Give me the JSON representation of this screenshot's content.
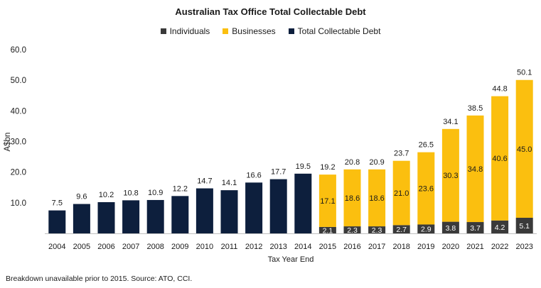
{
  "colors": {
    "individuals": "#3a3a3a",
    "businesses": "#fbbf0f",
    "total": "#0d1f3d"
  },
  "chart_data": {
    "type": "bar",
    "title": "Australian Tax Office Total Collectable Debt",
    "xlabel": "Tax Year End",
    "ylabel": "A$bn",
    "ylim": [
      0,
      60
    ],
    "yticks": [
      "10.0",
      "20.0",
      "30.0",
      "40.0",
      "50.0",
      "60.0"
    ],
    "legend": [
      "Individuals",
      "Businesses",
      "Total Collectable Debt"
    ],
    "legend_position": "top",
    "categories": [
      "2004",
      "2005",
      "2006",
      "2007",
      "2008",
      "2009",
      "2010",
      "2011",
      "2012",
      "2013",
      "2014",
      "2015",
      "2016",
      "2017",
      "2018",
      "2019",
      "2020",
      "2021",
      "2022",
      "2023"
    ],
    "total_only": [
      7.5,
      9.6,
      10.2,
      10.8,
      10.9,
      12.2,
      14.7,
      14.1,
      16.6,
      17.7,
      19.5
    ],
    "stacked": {
      "years": [
        "2015",
        "2016",
        "2017",
        "2018",
        "2019",
        "2020",
        "2021",
        "2022",
        "2023"
      ],
      "individuals": [
        2.1,
        2.3,
        2.3,
        2.7,
        2.9,
        3.8,
        3.7,
        4.2,
        5.1
      ],
      "businesses": [
        17.1,
        18.6,
        18.6,
        21.0,
        23.6,
        30.3,
        34.8,
        40.6,
        45.0
      ],
      "totals": [
        19.2,
        20.8,
        20.9,
        23.7,
        26.5,
        34.1,
        38.5,
        44.8,
        50.1
      ]
    }
  },
  "footnote": "Breakdown unavailable prior to 2015. Source: ATO, CCI."
}
